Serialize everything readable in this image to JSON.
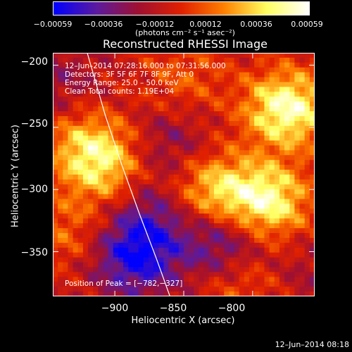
{
  "colorbar": {
    "ticks": [
      "−0.00059",
      "−0.00036",
      "−0.00012",
      "0.00012",
      "0.00036",
      "0.00059"
    ],
    "units": "(photons cm⁻² s⁻¹ asec⁻²)",
    "colors": [
      "#0000ff",
      "#5a1aa0",
      "#a01030",
      "#e02000",
      "#ff8000",
      "#ffff60",
      "#ffffff"
    ]
  },
  "chart_data": {
    "type": "heatmap",
    "title": "Reconstructed RHESSI Image",
    "xlabel": "Heliocentric X (arcsec)",
    "ylabel": "Heliocentric Y (arcsec)",
    "xlim": [
      -945,
      -755
    ],
    "ylim": [
      -386,
      -190
    ],
    "x_ticks": [
      "−900",
      "−850",
      "−800"
    ],
    "x_tick_values": [
      -900,
      -850,
      -800
    ],
    "y_ticks": [
      "−200",
      "−250",
      "−300",
      "−350"
    ],
    "y_tick_values": [
      -200,
      -250,
      -300,
      -350
    ],
    "color_range": [
      -0.00059,
      0.00059
    ],
    "blobs": [
      {
        "x": -775,
        "y": -235,
        "value": 0.00059
      },
      {
        "x": -790,
        "y": -310,
        "value": 0.00055
      },
      {
        "x": -830,
        "y": -300,
        "value": 0.0004
      },
      {
        "x": -920,
        "y": -265,
        "value": 0.00036
      },
      {
        "x": -905,
        "y": -285,
        "value": 0.0003
      },
      {
        "x": -935,
        "y": -335,
        "value": 0.0002
      },
      {
        "x": -850,
        "y": -210,
        "value": 0.00018
      },
      {
        "x": -810,
        "y": -370,
        "value": 0.00025
      },
      {
        "x": -885,
        "y": -355,
        "value": -0.00045
      },
      {
        "x": -820,
        "y": -345,
        "value": -0.0004
      },
      {
        "x": -860,
        "y": -265,
        "value": -0.0002
      },
      {
        "x": -940,
        "y": -215,
        "value": -0.00015
      },
      {
        "x": -875,
        "y": -320,
        "value": -0.00025
      },
      {
        "x": -760,
        "y": -365,
        "value": -0.0001
      }
    ],
    "limb_curve": [
      [
        -920,
        -190
      ],
      [
        -907,
        -240
      ],
      [
        -895,
        -280
      ],
      [
        -882,
        -320
      ],
      [
        -870,
        -355
      ],
      [
        -860,
        -386
      ]
    ],
    "peak": {
      "x": -782,
      "y": -327
    }
  },
  "annotations": {
    "time": "12–Jun–2014 07:28:16.000 to 07:31:56.000",
    "detectors": "Detectors: 3F 5F 6F 7F 8F 9F, Att 0",
    "energy": "Energy Range: 25.0 – 50.0 keV",
    "clean": "Clean    Total counts: 1.19E+04",
    "peak": "Position of Peak = [−782,−327]"
  },
  "footer_date": "12–Jun–2014 08:18"
}
